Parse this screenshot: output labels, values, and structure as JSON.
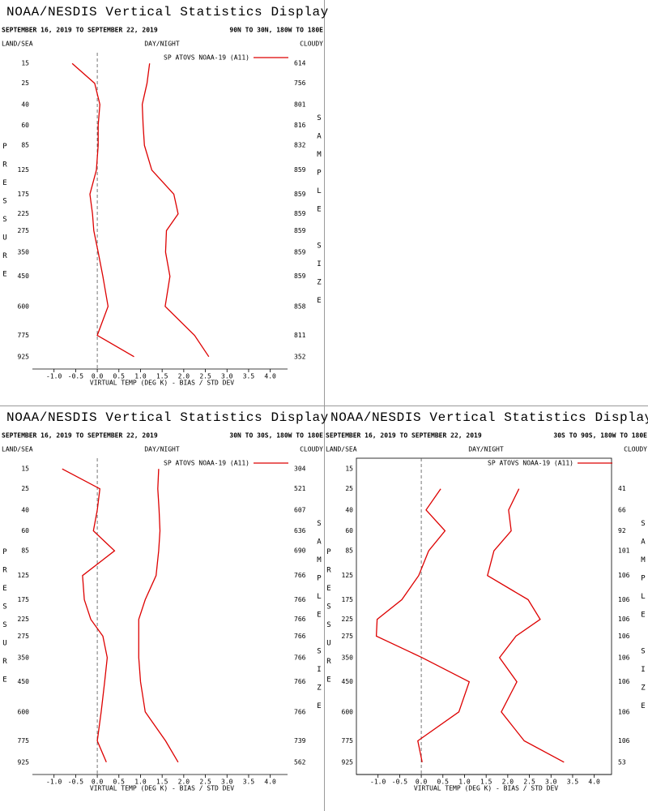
{
  "chart_data": [
    {
      "type": "line",
      "title": "NOAA/NESDIS Vertical Statistics Display",
      "subtitle": "SEPTEMBER 16, 2019 TO SEPTEMBER 22, 2019",
      "region": "90N TO 30N, 180W TO 180E",
      "land_sea": "LAND/SEA",
      "day_night": "DAY/NIGHT",
      "cloudy": "CLOUDY",
      "y_label": "PRESSURE",
      "y2_label": "SAMPLE SIZE",
      "x_label": "VIRTUAL TEMP (DEG K) - BIAS / STD DEV",
      "y": [
        15,
        25,
        40,
        60,
        85,
        125,
        175,
        225,
        275,
        350,
        450,
        600,
        775,
        925
      ],
      "ylim": [
        11,
        1020
      ],
      "yscale": {
        "type": "power",
        "exponent": 0.3
      },
      "sample_sizes": [
        614,
        756,
        801,
        816,
        832,
        859,
        859,
        859,
        859,
        859,
        859,
        858,
        811,
        352
      ],
      "series": [
        {
          "name": "SP ATOVS NOAA-19 (A11)",
          "color": "#dd0000",
          "values": [
            -0.58,
            -0.06,
            0.06,
            0.02,
            0.02,
            -0.02,
            -0.17,
            -0.11,
            -0.08,
            0.02,
            0.13,
            0.25,
            0.0,
            0.85
          ]
        },
        {
          "color": "#dd0000",
          "values": [
            1.21,
            1.15,
            1.04,
            1.06,
            1.09,
            1.26,
            1.77,
            1.87,
            1.6,
            1.58,
            1.68,
            1.57,
            2.25,
            2.58
          ]
        }
      ],
      "xlim": [
        -1.5,
        4.4
      ],
      "xticks": [
        {
          "value": -1,
          "label": "-1.0"
        },
        -0.5,
        {
          "value": 0,
          "label": "0.0"
        },
        0.5,
        {
          "value": 1,
          "label": "1.0"
        },
        1.5,
        {
          "value": 2,
          "label": "2.0"
        },
        2.5,
        {
          "value": 3,
          "label": "3.0"
        },
        3.5,
        {
          "value": 4,
          "label": "4.0"
        }
      ],
      "zero_line": true,
      "frame": false
    },
    {
      "type": "line",
      "title": "NOAA/NESDIS Vertical Statistics Display",
      "subtitle": "SEPTEMBER 16, 2019 TO SEPTEMBER 22, 2019",
      "region": "30N TO 30S, 180W TO 180E",
      "land_sea": "LAND/SEA",
      "day_night": "DAY/NIGHT",
      "cloudy": "CLOUDY",
      "y_label": "PRESSURE",
      "y2_label": "SAMPLE SIZE",
      "x_label": "VIRTUAL TEMP (DEG K) - BIAS / STD DEV",
      "y": [
        15,
        25,
        40,
        60,
        85,
        125,
        175,
        225,
        275,
        350,
        450,
        600,
        775,
        925
      ],
      "ylim": [
        11,
        1020
      ],
      "yscale": {
        "type": "power",
        "exponent": 0.3
      },
      "sample_sizes": [
        304,
        521,
        607,
        636,
        690,
        766,
        766,
        766,
        766,
        766,
        766,
        766,
        739,
        562
      ],
      "series": [
        {
          "name": "SP ATOVS NOAA-19 (A11)",
          "color": "#dd0000",
          "values": [
            -0.81,
            0.06,
            0.0,
            -0.09,
            0.4,
            -0.34,
            -0.3,
            -0.15,
            0.13,
            0.23,
            0.17,
            0.09,
            0.0,
            0.21
          ]
        },
        {
          "color": "#dd0000",
          "values": [
            1.42,
            1.4,
            1.43,
            1.45,
            1.42,
            1.36,
            1.11,
            0.96,
            0.96,
            0.96,
            1.0,
            1.11,
            1.58,
            1.87
          ]
        }
      ],
      "xlim": [
        -1.5,
        4.4
      ],
      "xticks": [
        {
          "value": -1,
          "label": "-1.0"
        },
        -0.5,
        {
          "value": 0,
          "label": "0.0"
        },
        0.5,
        {
          "value": 1,
          "label": "1.0"
        },
        1.5,
        {
          "value": 2,
          "label": "2.0"
        },
        2.5,
        {
          "value": 3,
          "label": "3.0"
        },
        3.5,
        {
          "value": 4,
          "label": "4.0"
        }
      ],
      "zero_line": true,
      "frame": false
    },
    {
      "type": "line",
      "title": "NOAA/NESDIS Vertical Statistics Display",
      "subtitle": "SEPTEMBER 16, 2019 TO SEPTEMBER 22, 2019",
      "region": "30S TO 90S, 180W TO 180E",
      "land_sea": "LAND/SEA",
      "day_night": "DAY/NIGHT",
      "cloudy": "CLOUDY",
      "y_label": "PRESSURE",
      "y2_label": "SAMPLE SIZE",
      "x_label": "VIRTUAL TEMP (DEG K) - BIAS / STD DEV",
      "y": [
        15,
        25,
        40,
        60,
        85,
        125,
        175,
        225,
        275,
        350,
        450,
        600,
        775,
        925
      ],
      "ylim": [
        11,
        1020
      ],
      "yscale": {
        "type": "power",
        "exponent": 0.3
      },
      "sample_sizes": [
        null,
        41,
        66,
        92,
        101,
        106,
        106,
        106,
        106,
        106,
        106,
        106,
        106,
        53
      ],
      "series": [
        {
          "name": "SP ATOVS NOAA-19 (A11)",
          "color": "#dd0000",
          "values": [
            null,
            0.45,
            0.11,
            0.55,
            0.17,
            -0.06,
            -0.45,
            -1.02,
            -1.04,
            0.02,
            1.11,
            0.87,
            -0.08,
            0.02
          ]
        },
        {
          "color": "#dd0000",
          "values": [
            null,
            2.26,
            2.02,
            2.08,
            1.68,
            1.53,
            2.47,
            2.75,
            2.19,
            1.81,
            2.21,
            1.85,
            2.38,
            3.3
          ]
        }
      ],
      "xlim": [
        -1.5,
        4.4
      ],
      "xticks": [
        {
          "value": -1,
          "label": "-1.0"
        },
        -0.5,
        {
          "value": 0,
          "label": "0.0"
        },
        0.5,
        {
          "value": 1,
          "label": "1.0"
        },
        1.5,
        {
          "value": 2,
          "label": "2.0"
        },
        2.5,
        {
          "value": 3,
          "label": "3.0"
        },
        3.5,
        {
          "value": 4,
          "label": "4.0"
        }
      ],
      "zero_line": true,
      "frame": true
    }
  ]
}
